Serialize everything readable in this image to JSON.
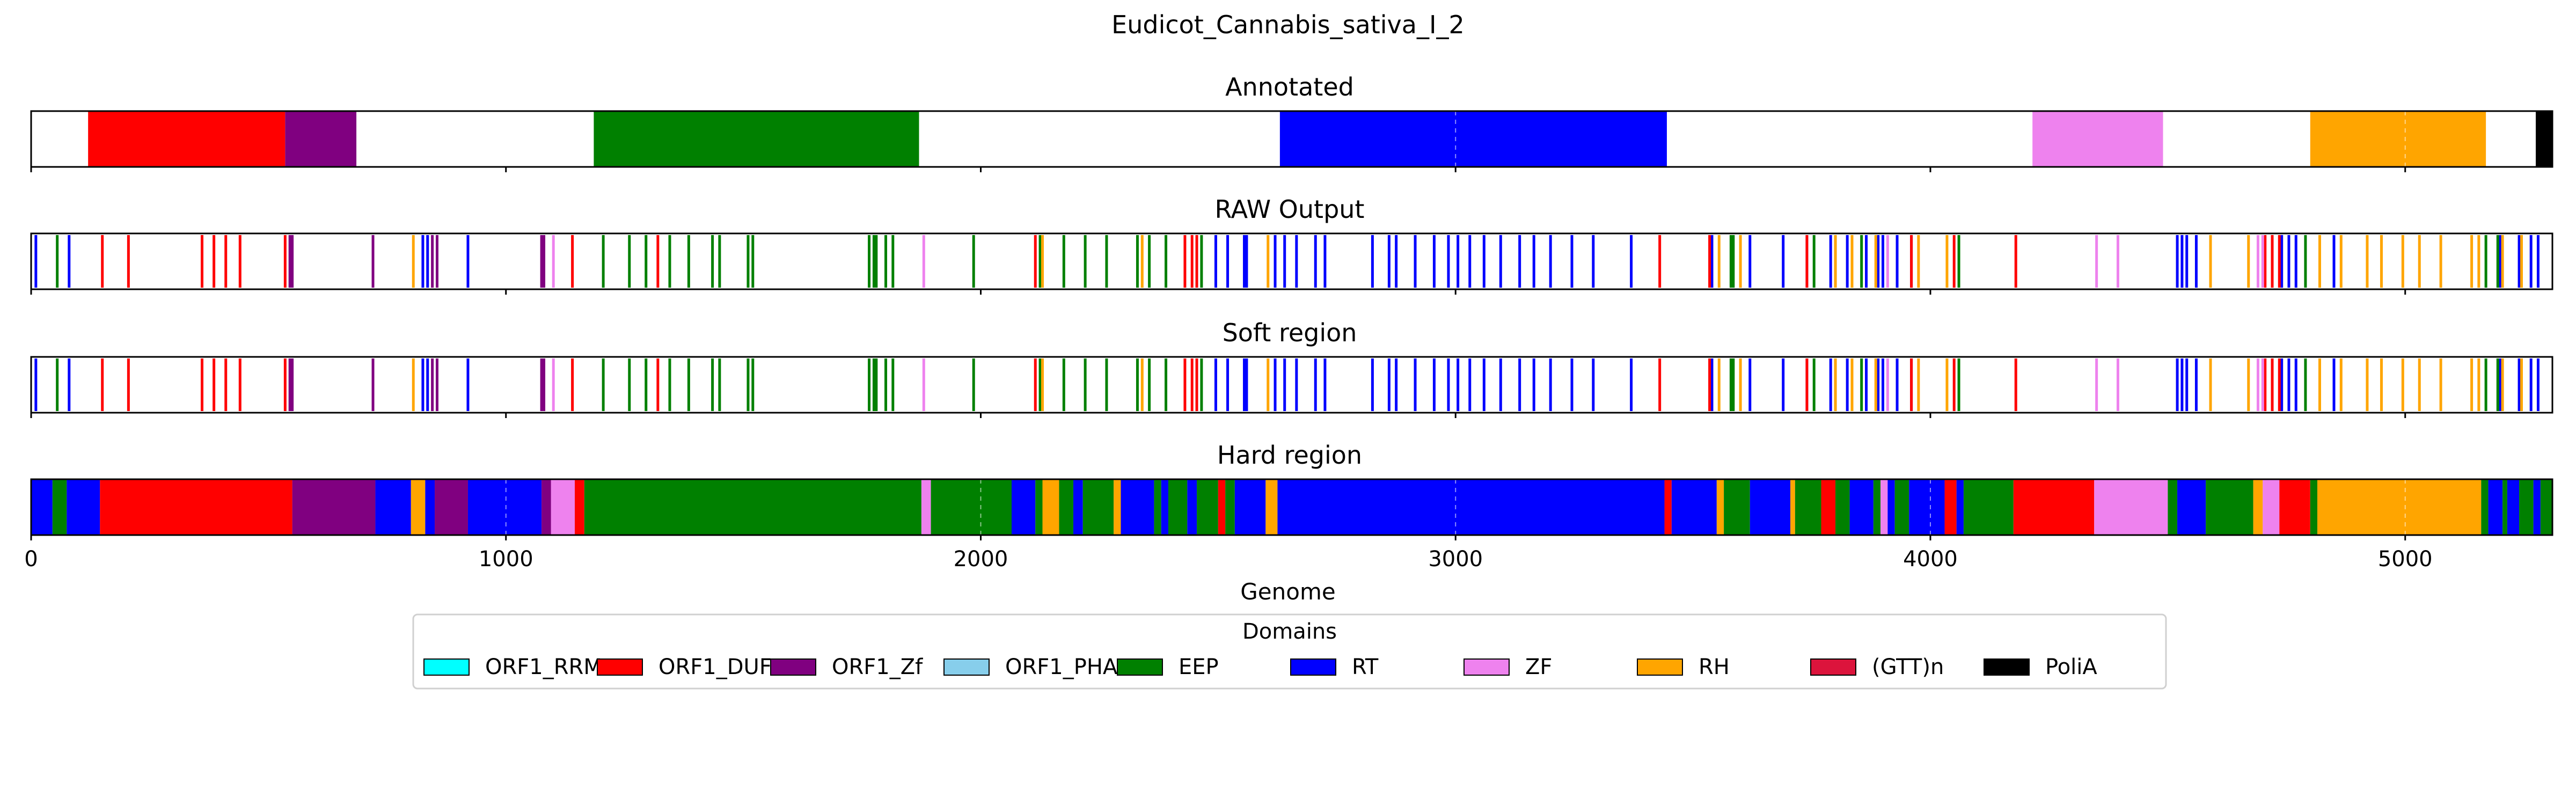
{
  "chart_data": {
    "type": "genome-track",
    "title": "Eudicot_Cannabis_sativa_I_2",
    "xlabel": "Genome",
    "xlim": [
      0,
      5310
    ],
    "xticks": [
      0,
      1000,
      2000,
      3000,
      4000,
      5000
    ],
    "grid": "dashed vertical lines at x ticks",
    "colors": {
      "ORF1_RRM": "#00ffff",
      "ORF1_DUF": "#ff0000",
      "ORF1_Zf": "#800080",
      "ORF1_PHA": "#87ceeb",
      "EEP": "#008000",
      "RT": "#0000ff",
      "ZF": "#ee82ee",
      "RH": "#ffa500",
      "(GTT)n": "#dc143c",
      "PoliA": "#000000"
    },
    "legend": {
      "title": "Domains",
      "placement": "bottom-center",
      "items": [
        "ORF1_RRM",
        "ORF1_DUF",
        "ORF1_Zf",
        "ORF1_PHA",
        "EEP",
        "RT",
        "ZF",
        "RH",
        "(GTT)n",
        "PoliA"
      ]
    },
    "panels": [
      {
        "title": "Annotated",
        "kind": "segments",
        "segments": [
          {
            "start": 120,
            "end": 535,
            "domain": "ORF1_DUF"
          },
          {
            "start": 535,
            "end": 685,
            "domain": "ORF1_Zf"
          },
          {
            "start": 1185,
            "end": 1870,
            "domain": "EEP"
          },
          {
            "start": 2630,
            "end": 3445,
            "domain": "RT"
          },
          {
            "start": 4215,
            "end": 4490,
            "domain": "ZF"
          },
          {
            "start": 4800,
            "end": 5170,
            "domain": "RH"
          },
          {
            "start": 5275,
            "end": 5310,
            "domain": "PoliA"
          }
        ]
      },
      {
        "title": "RAW Output",
        "kind": "markers",
        "markers": [
          {
            "domain": "RT",
            "x": [
              10,
              80,
              825,
              835,
              920,
              2495,
              2520,
              2555,
              2560,
              2620,
              2640,
              2665,
              2705,
              2725,
              2825,
              2860,
              2875,
              2915,
              2955,
              2985,
              3005,
              3030,
              3060,
              3095,
              3135,
              3165,
              3200,
              3245,
              3290,
              3370,
              3540,
              3620,
              3690,
              3740,
              3790,
              3800,
              3825,
              3865,
              3890,
              3900,
              3930,
              3960,
              4520,
              4530,
              4540,
              4560,
              4740,
              4755,
              4770,
              4850,
              5200,
              5240,
              5265,
              5280
            ]
          },
          {
            "domain": "ORF1_DUF",
            "x": [
              150,
              205,
              360,
              385,
              410,
              440,
              535,
              1140,
              1320,
              2115,
              2430,
              2445,
              2455,
              3430,
              3535,
              3740,
              3960,
              4050,
              4180,
              4705,
              4720,
              4735
            ]
          },
          {
            "domain": "EEP",
            "x": [
              55,
              1205,
              1260,
              1295,
              1345,
              1385,
              1435,
              1450,
              1510,
              1520,
              1765,
              1775,
              1780,
              1800,
              1815,
              1985,
              2125,
              2175,
              2220,
              2265,
              2330,
              2355,
              2390,
              2465,
              3580,
              3585,
              3755,
              3855,
              4060,
              4790,
              5170,
              5195
            ]
          },
          {
            "domain": "ORF1_Zf",
            "x": [
              545,
              550,
              720,
              845,
              855,
              1075,
              1080
            ]
          },
          {
            "domain": "RH",
            "x": [
              805,
              2130,
              2340,
              2605,
              3555,
              3600,
              3800,
              3835,
              3885,
              3975,
              4035,
              4590,
              4670,
              4820,
              4865,
              4920,
              4950,
              4995,
              5030,
              5075,
              5140,
              5155,
              5205,
              5245
            ]
          },
          {
            "domain": "ZF",
            "x": [
              1100,
              1880,
              3910,
              4350,
              4395,
              4690,
              4700
            ]
          }
        ]
      },
      {
        "title": "Soft region",
        "kind": "markers",
        "markers": [
          {
            "domain": "RT",
            "x": [
              10,
              80,
              825,
              835,
              920,
              2495,
              2520,
              2555,
              2560,
              2620,
              2640,
              2665,
              2705,
              2725,
              2825,
              2860,
              2875,
              2915,
              2955,
              2985,
              3005,
              3030,
              3060,
              3095,
              3135,
              3165,
              3200,
              3245,
              3290,
              3370,
              3540,
              3620,
              3690,
              3740,
              3790,
              3800,
              3825,
              3865,
              3890,
              3900,
              3930,
              3960,
              4520,
              4530,
              4540,
              4560,
              4740,
              4755,
              4770,
              4850,
              5200,
              5240,
              5265,
              5280
            ]
          },
          {
            "domain": "ORF1_DUF",
            "x": [
              150,
              205,
              360,
              385,
              410,
              440,
              535,
              1140,
              1320,
              2115,
              2430,
              2445,
              2455,
              3430,
              3535,
              3740,
              3960,
              4050,
              4180,
              4705,
              4720,
              4735
            ]
          },
          {
            "domain": "EEP",
            "x": [
              55,
              1205,
              1260,
              1295,
              1345,
              1385,
              1435,
              1450,
              1510,
              1520,
              1765,
              1775,
              1780,
              1800,
              1815,
              1985,
              2125,
              2175,
              2220,
              2265,
              2330,
              2355,
              2390,
              2465,
              3580,
              3585,
              3755,
              3855,
              4060,
              4790,
              5170,
              5195
            ]
          },
          {
            "domain": "ORF1_Zf",
            "x": [
              545,
              550,
              720,
              845,
              855,
              1075,
              1080
            ]
          },
          {
            "domain": "RH",
            "x": [
              805,
              2130,
              2340,
              2605,
              3555,
              3600,
              3800,
              3835,
              3885,
              3975,
              4035,
              4590,
              4670,
              4820,
              4865,
              4920,
              4950,
              4995,
              5030,
              5075,
              5140,
              5155,
              5205,
              5245
            ]
          },
          {
            "domain": "ZF",
            "x": [
              1100,
              1880,
              3910,
              4350,
              4395,
              4690,
              4700
            ]
          }
        ]
      },
      {
        "title": "Hard region",
        "kind": "segments",
        "segments": [
          {
            "start": 0,
            "end": 45,
            "domain": "RT"
          },
          {
            "start": 45,
            "end": 75,
            "domain": "EEP"
          },
          {
            "start": 75,
            "end": 145,
            "domain": "RT"
          },
          {
            "start": 145,
            "end": 550,
            "domain": "ORF1_DUF"
          },
          {
            "start": 550,
            "end": 725,
            "domain": "ORF1_Zf"
          },
          {
            "start": 725,
            "end": 800,
            "domain": "RT"
          },
          {
            "start": 800,
            "end": 830,
            "domain": "RH"
          },
          {
            "start": 830,
            "end": 850,
            "domain": "RT"
          },
          {
            "start": 850,
            "end": 920,
            "domain": "ORF1_Zf"
          },
          {
            "start": 920,
            "end": 1075,
            "domain": "RT"
          },
          {
            "start": 1075,
            "end": 1095,
            "domain": "ORF1_Zf"
          },
          {
            "start": 1095,
            "end": 1145,
            "domain": "ZF"
          },
          {
            "start": 1145,
            "end": 1165,
            "domain": "ORF1_DUF"
          },
          {
            "start": 1165,
            "end": 1875,
            "domain": "EEP"
          },
          {
            "start": 1875,
            "end": 1895,
            "domain": "ZF"
          },
          {
            "start": 1895,
            "end": 2065,
            "domain": "EEP"
          },
          {
            "start": 2065,
            "end": 2115,
            "domain": "RT"
          },
          {
            "start": 2115,
            "end": 2130,
            "domain": "EEP"
          },
          {
            "start": 2130,
            "end": 2165,
            "domain": "RH"
          },
          {
            "start": 2165,
            "end": 2195,
            "domain": "EEP"
          },
          {
            "start": 2195,
            "end": 2215,
            "domain": "RT"
          },
          {
            "start": 2215,
            "end": 2280,
            "domain": "EEP"
          },
          {
            "start": 2280,
            "end": 2295,
            "domain": "RH"
          },
          {
            "start": 2295,
            "end": 2365,
            "domain": "RT"
          },
          {
            "start": 2365,
            "end": 2380,
            "domain": "EEP"
          },
          {
            "start": 2380,
            "end": 2395,
            "domain": "RT"
          },
          {
            "start": 2395,
            "end": 2435,
            "domain": "EEP"
          },
          {
            "start": 2435,
            "end": 2455,
            "domain": "RT"
          },
          {
            "start": 2455,
            "end": 2500,
            "domain": "EEP"
          },
          {
            "start": 2500,
            "end": 2515,
            "domain": "ORF1_DUF"
          },
          {
            "start": 2515,
            "end": 2535,
            "domain": "EEP"
          },
          {
            "start": 2535,
            "end": 2600,
            "domain": "RT"
          },
          {
            "start": 2600,
            "end": 2625,
            "domain": "RH"
          },
          {
            "start": 2625,
            "end": 3440,
            "domain": "RT"
          },
          {
            "start": 3440,
            "end": 3455,
            "domain": "ORF1_DUF"
          },
          {
            "start": 3455,
            "end": 3550,
            "domain": "RT"
          },
          {
            "start": 3550,
            "end": 3565,
            "domain": "RH"
          },
          {
            "start": 3565,
            "end": 3620,
            "domain": "EEP"
          },
          {
            "start": 3620,
            "end": 3705,
            "domain": "RT"
          },
          {
            "start": 3705,
            "end": 3715,
            "domain": "RH"
          },
          {
            "start": 3715,
            "end": 3770,
            "domain": "EEP"
          },
          {
            "start": 3770,
            "end": 3800,
            "domain": "ORF1_DUF"
          },
          {
            "start": 3800,
            "end": 3830,
            "domain": "EEP"
          },
          {
            "start": 3830,
            "end": 3880,
            "domain": "RT"
          },
          {
            "start": 3880,
            "end": 3895,
            "domain": "EEP"
          },
          {
            "start": 3895,
            "end": 3910,
            "domain": "ZF"
          },
          {
            "start": 3910,
            "end": 3925,
            "domain": "RT"
          },
          {
            "start": 3925,
            "end": 3955,
            "domain": "EEP"
          },
          {
            "start": 3955,
            "end": 4030,
            "domain": "RT"
          },
          {
            "start": 4030,
            "end": 4055,
            "domain": "ORF1_DUF"
          },
          {
            "start": 4055,
            "end": 4070,
            "domain": "RT"
          },
          {
            "start": 4070,
            "end": 4175,
            "domain": "EEP"
          },
          {
            "start": 4175,
            "end": 4345,
            "domain": "ORF1_DUF"
          },
          {
            "start": 4345,
            "end": 4500,
            "domain": "ZF"
          },
          {
            "start": 4500,
            "end": 4520,
            "domain": "EEP"
          },
          {
            "start": 4520,
            "end": 4580,
            "domain": "RT"
          },
          {
            "start": 4580,
            "end": 4680,
            "domain": "EEP"
          },
          {
            "start": 4680,
            "end": 4700,
            "domain": "RH"
          },
          {
            "start": 4700,
            "end": 4735,
            "domain": "ZF"
          },
          {
            "start": 4735,
            "end": 4800,
            "domain": "ORF1_DUF"
          },
          {
            "start": 4800,
            "end": 4815,
            "domain": "EEP"
          },
          {
            "start": 4815,
            "end": 5160,
            "domain": "RH"
          },
          {
            "start": 5160,
            "end": 5175,
            "domain": "EEP"
          },
          {
            "start": 5175,
            "end": 5205,
            "domain": "RT"
          },
          {
            "start": 5205,
            "end": 5215,
            "domain": "EEP"
          },
          {
            "start": 5215,
            "end": 5240,
            "domain": "RT"
          },
          {
            "start": 5240,
            "end": 5270,
            "domain": "EEP"
          },
          {
            "start": 5270,
            "end": 5285,
            "domain": "RT"
          },
          {
            "start": 5285,
            "end": 5310,
            "domain": "EEP"
          }
        ]
      }
    ]
  }
}
